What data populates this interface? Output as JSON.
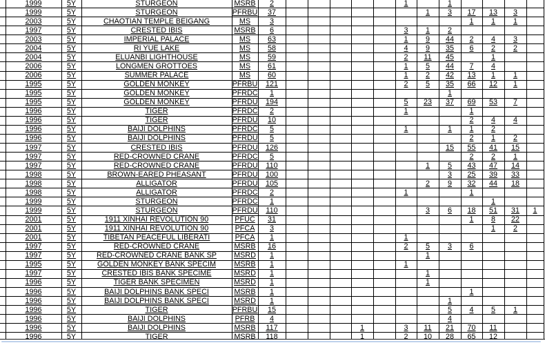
{
  "table": {
    "rows": [
      {
        "year": "1999",
        "denomination": "5Y",
        "name": "STURGEON",
        "code": "MSRB",
        "total": "2",
        "grades": [
          "",
          "",
          "",
          "",
          "",
          "1",
          "",
          "1",
          "",
          "",
          "",
          ""
        ]
      },
      {
        "year": "1999",
        "denomination": "5Y",
        "name": "STURGEON",
        "code": "PFRBU",
        "total": "37",
        "grades": [
          "",
          "",
          "",
          "",
          "",
          "",
          "1",
          "3",
          "17",
          "13",
          "3",
          ""
        ]
      },
      {
        "year": "2003",
        "denomination": "5Y",
        "name": "CHAOTIAN TEMPLE BEIGANG",
        "code": "MS",
        "total": "3",
        "grades": [
          "",
          "",
          "",
          "",
          "",
          "",
          "",
          "",
          "1",
          "1",
          "1",
          ""
        ]
      },
      {
        "year": "1997",
        "denomination": "5Y",
        "name": "CRESTED IBIS",
        "code": "MSRB",
        "total": "6",
        "grades": [
          "",
          "",
          "",
          "",
          "",
          "3",
          "1",
          "2",
          "",
          "",
          "",
          ""
        ]
      },
      {
        "year": "2003",
        "denomination": "5Y",
        "name": "IMPERIAL PALACE",
        "code": "MS",
        "total": "63",
        "grades": [
          "",
          "",
          "",
          "",
          "",
          "1",
          "9",
          "44",
          "2",
          "4",
          "3",
          ""
        ]
      },
      {
        "year": "2004",
        "denomination": "5Y",
        "name": "RI YUE LAKE",
        "code": "MS",
        "total": "58",
        "grades": [
          "",
          "",
          "",
          "",
          "",
          "4",
          "9",
          "35",
          "6",
          "2",
          "2",
          ""
        ]
      },
      {
        "year": "2004",
        "denomination": "5Y",
        "name": "ELUANBI LIGHTHOUSE",
        "code": "MS",
        "total": "59",
        "grades": [
          "",
          "",
          "",
          "",
          "",
          "2",
          "11",
          "45",
          "",
          "1",
          "",
          ""
        ]
      },
      {
        "year": "2006",
        "denomination": "5Y",
        "name": "LONGMEN GROTTOES",
        "code": "MS",
        "total": "61",
        "grades": [
          "",
          "",
          "",
          "",
          "",
          "1",
          "5",
          "44",
          "7",
          "4",
          "",
          ""
        ]
      },
      {
        "year": "2006",
        "denomination": "5Y",
        "name": "SUMMER PALACE",
        "code": "MS",
        "total": "60",
        "grades": [
          "",
          "",
          "",
          "",
          "",
          "1",
          "2",
          "42",
          "13",
          "1",
          "1",
          ""
        ]
      },
      {
        "year": "1995",
        "denomination": "5Y",
        "name": "GOLDEN MONKEY",
        "code": "PFRBU",
        "total": "121",
        "grades": [
          "",
          "",
          "",
          "",
          "",
          "2",
          "5",
          "35",
          "66",
          "12",
          "1",
          ""
        ]
      },
      {
        "year": "1995",
        "denomination": "5Y",
        "name": "GOLDEN MONKEY",
        "code": "PFRDC",
        "total": "1",
        "grades": [
          "",
          "",
          "",
          "",
          "",
          "",
          "",
          "1",
          "",
          "",
          "",
          ""
        ]
      },
      {
        "year": "1995",
        "denomination": "5Y",
        "name": "GOLDEN MONKEY",
        "code": "PFRDU",
        "total": "194",
        "grades": [
          "",
          "",
          "",
          "",
          "",
          "5",
          "23",
          "37",
          "69",
          "53",
          "7",
          ""
        ]
      },
      {
        "year": "1996",
        "denomination": "5Y",
        "name": "TIGER",
        "code": "PFRDC",
        "total": "2",
        "grades": [
          "",
          "",
          "",
          "",
          "",
          "1",
          "",
          "",
          "1",
          "",
          "",
          ""
        ]
      },
      {
        "year": "1996",
        "denomination": "5Y",
        "name": "TIGER",
        "code": "PFRDU",
        "total": "10",
        "grades": [
          "",
          "",
          "",
          "",
          "",
          "",
          "",
          "",
          "2",
          "4",
          "4",
          ""
        ]
      },
      {
        "year": "1996",
        "denomination": "5Y",
        "name": "BAIJI DOLPHINS",
        "code": "PFRDC",
        "total": "5",
        "grades": [
          "",
          "",
          "",
          "",
          "",
          "1",
          "",
          "1",
          "1",
          "2",
          "",
          ""
        ]
      },
      {
        "year": "1996",
        "denomination": "5Y",
        "name": "BAIJI DOLPHINS",
        "code": "PFRDU",
        "total": "5",
        "grades": [
          "",
          "",
          "",
          "",
          "",
          "",
          "",
          "",
          "2",
          "1",
          "2",
          ""
        ]
      },
      {
        "year": "1997",
        "denomination": "5Y",
        "name": "CRESTED IBIS",
        "code": "PFRDU",
        "total": "126",
        "grades": [
          "",
          "",
          "",
          "",
          "",
          "",
          "",
          "15",
          "55",
          "41",
          "15",
          ""
        ]
      },
      {
        "year": "1997",
        "denomination": "5Y",
        "name": "RED-CROWNED CRANE",
        "code": "PFRDC",
        "total": "5",
        "grades": [
          "",
          "",
          "",
          "",
          "",
          "",
          "",
          "",
          "2",
          "2",
          "1",
          ""
        ]
      },
      {
        "year": "1997",
        "denomination": "5Y",
        "name": "RED-CROWNED CRANE",
        "code": "PFRDU",
        "total": "110",
        "grades": [
          "",
          "",
          "",
          "",
          "",
          "",
          "1",
          "5",
          "43",
          "47",
          "14",
          ""
        ]
      },
      {
        "year": "1998",
        "denomination": "5Y",
        "name": "BROWN-EARED PHEASANT",
        "code": "PFRDU",
        "total": "100",
        "grades": [
          "",
          "",
          "",
          "",
          "",
          "",
          "",
          "3",
          "25",
          "39",
          "33",
          ""
        ]
      },
      {
        "year": "1998",
        "denomination": "5Y",
        "name": "ALLIGATOR",
        "code": "PFRDU",
        "total": "105",
        "grades": [
          "",
          "",
          "",
          "",
          "",
          "",
          "2",
          "9",
          "32",
          "44",
          "18",
          ""
        ]
      },
      {
        "year": "1998",
        "denomination": "5Y",
        "name": "ALLIGATOR",
        "code": "PFRDC",
        "total": "2",
        "grades": [
          "",
          "",
          "",
          "",
          "",
          "1",
          "",
          "",
          "1",
          "",
          "",
          ""
        ]
      },
      {
        "year": "1999",
        "denomination": "5Y",
        "name": "STURGEON",
        "code": "PFRDC",
        "total": "1",
        "grades": [
          "",
          "",
          "",
          "",
          "",
          "",
          "",
          "",
          "",
          "1",
          "",
          ""
        ]
      },
      {
        "year": "1999",
        "denomination": "5Y",
        "name": "STURGEON",
        "code": "PFRDU",
        "total": "110",
        "grades": [
          "",
          "",
          "",
          "",
          "",
          "",
          "3",
          "6",
          "18",
          "51",
          "31",
          "1"
        ]
      },
      {
        "year": "2001",
        "denomination": "5Y",
        "name": "1911 XINHAI REVOLUTION 90",
        "code": "PFUC",
        "total": "31",
        "grades": [
          "",
          "",
          "",
          "",
          "",
          "",
          "",
          "",
          "1",
          "8",
          "22",
          ""
        ]
      },
      {
        "year": "2001",
        "denomination": "5Y",
        "name": "1911 XINHAI REVOLUTION 90",
        "code": "PFCA",
        "total": "3",
        "grades": [
          "",
          "",
          "",
          "",
          "",
          "",
          "",
          "",
          "",
          "1",
          "2",
          ""
        ]
      },
      {
        "year": "2001",
        "denomination": "5Y",
        "name": "TIBETAN PEACEFUL LIBERATI",
        "code": "PFCA",
        "total": "1",
        "grades": [
          "",
          "",
          "",
          "",
          "",
          "1",
          "",
          "",
          "",
          "",
          "",
          ""
        ]
      },
      {
        "year": "1997",
        "denomination": "5Y",
        "name": "RED-CROWNED CRANE",
        "code": "MSRB",
        "total": "16",
        "grades": [
          "",
          "",
          "",
          "",
          "",
          "2",
          "5",
          "3",
          "6",
          "",
          "",
          ""
        ]
      },
      {
        "year": "1997",
        "denomination": "5Y",
        "name": "RED-CROWNED CRANE BANK SP",
        "code": "MSRD",
        "total": "1",
        "grades": [
          "",
          "",
          "",
          "",
          "",
          "",
          "1",
          "",
          "",
          "",
          "",
          ""
        ]
      },
      {
        "year": "1995",
        "denomination": "5Y",
        "name": "GOLDEN MONKEY BANK SPECIM",
        "code": "MSRB",
        "total": "1",
        "grades": [
          "",
          "",
          "",
          "",
          "",
          "1",
          "",
          "",
          "",
          "",
          "",
          ""
        ]
      },
      {
        "year": "1997",
        "denomination": "5Y",
        "name": "CRESTED IBIS BANK SPECIME",
        "code": "MSRD",
        "total": "1",
        "grades": [
          "",
          "",
          "",
          "",
          "",
          "",
          "1",
          "",
          "",
          "",
          "",
          ""
        ]
      },
      {
        "year": "1996",
        "denomination": "5Y",
        "name": "TIGER BANK SPECIMEN",
        "code": "MSRD",
        "total": "1",
        "grades": [
          "",
          "",
          "",
          "",
          "",
          "",
          "1",
          "",
          "",
          "",
          "",
          ""
        ]
      },
      {
        "year": "1996",
        "denomination": "5Y",
        "name": "BAIJI DOLPHINS BANK SPECI",
        "code": "MSRB",
        "total": "1",
        "grades": [
          "",
          "",
          "",
          "",
          "",
          "",
          "",
          "",
          "1",
          "",
          "",
          ""
        ]
      },
      {
        "year": "1996",
        "denomination": "5Y",
        "name": "BAIJI DOLPHINS BANK SPECI",
        "code": "MSRD",
        "total": "1",
        "grades": [
          "",
          "",
          "",
          "",
          "",
          "",
          "",
          "1",
          "",
          "",
          "",
          ""
        ]
      },
      {
        "year": "1996",
        "denomination": "5Y",
        "name": "TIGER",
        "code": "PFRBU",
        "total": "15",
        "grades": [
          "",
          "",
          "",
          "",
          "",
          "",
          "",
          "5",
          "4",
          "5",
          "1",
          ""
        ]
      },
      {
        "year": "1996",
        "denomination": "5Y",
        "name": "BAIJI DOLPHINS",
        "code": "PFRB",
        "total": "4",
        "grades": [
          "",
          "",
          "",
          "",
          "",
          "",
          "",
          "4",
          "",
          "",
          "",
          ""
        ]
      },
      {
        "year": "1996",
        "denomination": "5Y",
        "name": "BAIJI DOLPHINS",
        "code": "MSRB",
        "total": "117",
        "grades": [
          "",
          "",
          "",
          "1",
          "",
          "3",
          "11",
          "21",
          "70",
          "11",
          "",
          ""
        ]
      },
      {
        "year": "1996",
        "denomination": "5Y",
        "name": "TIGER",
        "code": "MSRB",
        "total": "118",
        "grades": [
          "",
          "",
          "",
          "1",
          "",
          "2",
          "10",
          "28",
          "65",
          "12",
          "",
          ""
        ]
      }
    ]
  },
  "colors": {
    "grid_line": "#000000",
    "text": "#000000",
    "scrollbar_accent": "#bed1ec",
    "background": "#ffffff"
  }
}
